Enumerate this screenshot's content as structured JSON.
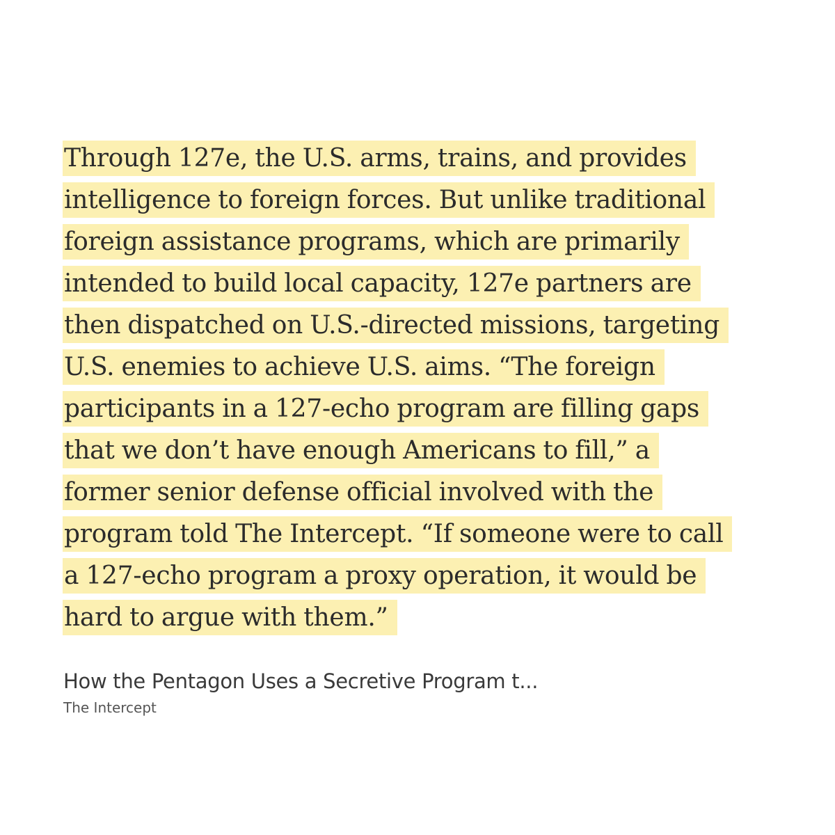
{
  "highlight": {
    "lines": [
      "Through 127e, the U.S. arms, trains, and provides",
      "intelligence to foreign forces. But unlike traditional",
      "foreign assistance programs, which are primarily",
      "intended to build local capacity, 127e partners are",
      "then dispatched on U.S.-directed missions, targeting",
      "U.S. enemies to achieve U.S. aims. “The foreign",
      "participants in a 127-echo program are filling gaps",
      "that we don’t have enough Americans to fill,” a",
      "former senior defense official involved with the",
      "program told The Intercept. “If someone were to call",
      "a 127-echo program a proxy operation, it would be",
      "hard to argue with them.”"
    ],
    "color": "#fcf0b2"
  },
  "source": {
    "title": "How the Pentagon Uses a Secretive Program t...",
    "publisher": "The Intercept"
  }
}
